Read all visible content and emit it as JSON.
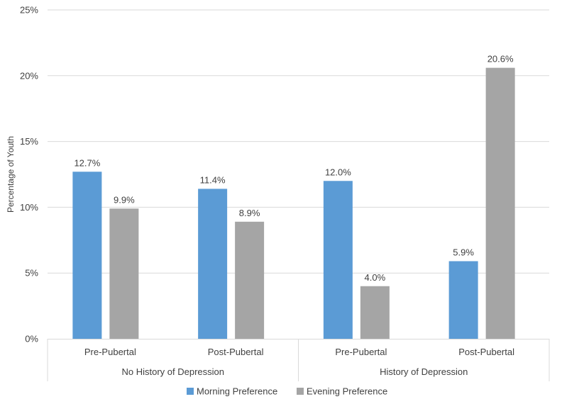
{
  "chart_data": {
    "type": "bar",
    "ylabel": "Percentage of Youth",
    "ylim": [
      0,
      25
    ],
    "ytick_step": 5,
    "ytick_labels": [
      "0%",
      "5%",
      "10%",
      "15%",
      "20%",
      "25%"
    ],
    "grid": true,
    "groups": [
      {
        "label": "No History of Depression",
        "categories": [
          "Pre-Pubertal",
          "Post-Pubertal"
        ]
      },
      {
        "label": "History of Depression",
        "categories": [
          "Pre-Pubertal",
          "Post-Pubertal"
        ]
      }
    ],
    "series": [
      {
        "name": "Morning Preference",
        "color": "#5B9BD5",
        "values": [
          12.7,
          11.4,
          12.0,
          5.9
        ],
        "labels": [
          "12.7%",
          "11.4%",
          "12.0%",
          "5.9%"
        ]
      },
      {
        "name": "Evening Preference",
        "color": "#A5A5A5",
        "values": [
          9.9,
          8.9,
          4.0,
          20.6
        ],
        "labels": [
          "9.9%",
          "8.9%",
          "4.0%",
          "20.6%"
        ]
      }
    ],
    "legend_position": "bottom"
  }
}
